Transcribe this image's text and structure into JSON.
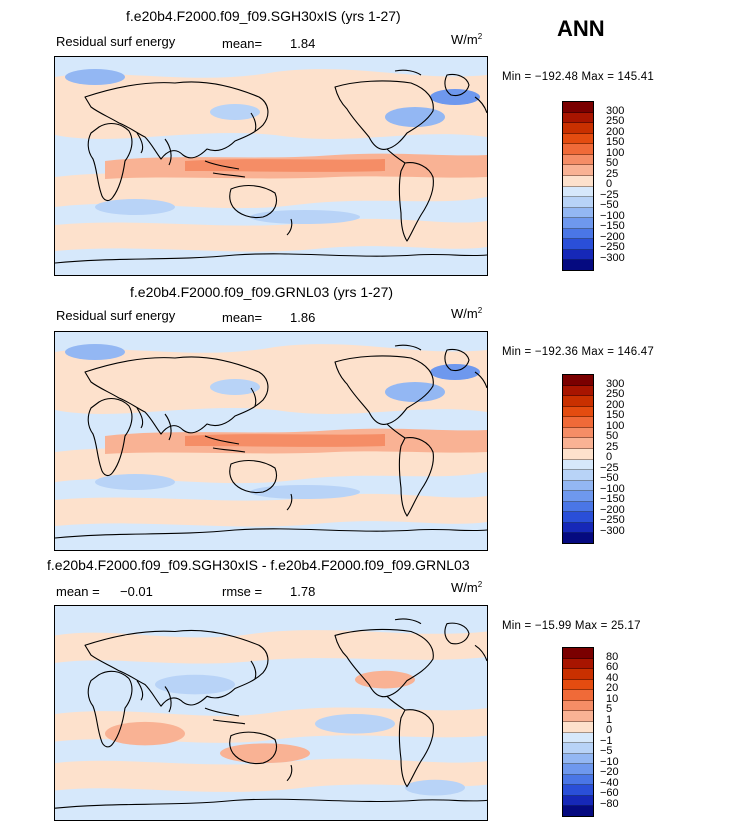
{
  "season": "ANN",
  "panels": [
    {
      "title": "f.e20b4.F2000.f09_f09.SGH30xIS (yrs 1-27)",
      "left_label": "Residual surf energy",
      "stat1_label": "mean=",
      "stat1_value": "1.84",
      "units_base": "W/m",
      "units_exp": "2",
      "minmax": "Min = −192.48  Max = 145.41",
      "levels": [
        "300",
        "250",
        "200",
        "150",
        "100",
        "50",
        "25",
        "0",
        "−25",
        "−50",
        "−100",
        "−150",
        "−200",
        "−250",
        "−300"
      ]
    },
    {
      "title": "f.e20b4.F2000.f09_f09.GRNL03 (yrs 1-27)",
      "left_label": "Residual surf energy",
      "stat1_label": "mean=",
      "stat1_value": "1.86",
      "units_base": "W/m",
      "units_exp": "2",
      "minmax": "Min = −192.36  Max = 146.47",
      "levels": [
        "300",
        "250",
        "200",
        "150",
        "100",
        "50",
        "25",
        "0",
        "−25",
        "−50",
        "−100",
        "−150",
        "−200",
        "−250",
        "−300"
      ]
    },
    {
      "title": "f.e20b4.F2000.f09_f09.SGH30xIS - f.e20b4.F2000.f09_f09.GRNL03",
      "left_label": "mean =",
      "stat1_label": "−0.01",
      "stat2_label": "rmse =",
      "stat2_value": "1.78",
      "units_base": "W/m",
      "units_exp": "2",
      "minmax": "Min = −15.99  Max =  25.17",
      "levels": [
        "80",
        "60",
        "40",
        "20",
        "10",
        "5",
        "1",
        "0",
        "−1",
        "−5",
        "−10",
        "−20",
        "−40",
        "−60",
        "−80"
      ]
    }
  ],
  "colorbar_colors": [
    "#7a0000",
    "#a81500",
    "#c93000",
    "#e44c10",
    "#f06a38",
    "#f58d66",
    "#f9b294",
    "#fde1cc",
    "#d6e8fb",
    "#b8d3f7",
    "#93b7f3",
    "#6e98ee",
    "#4a76e6",
    "#2a4fd8",
    "#1628b8",
    "#050a80"
  ]
}
